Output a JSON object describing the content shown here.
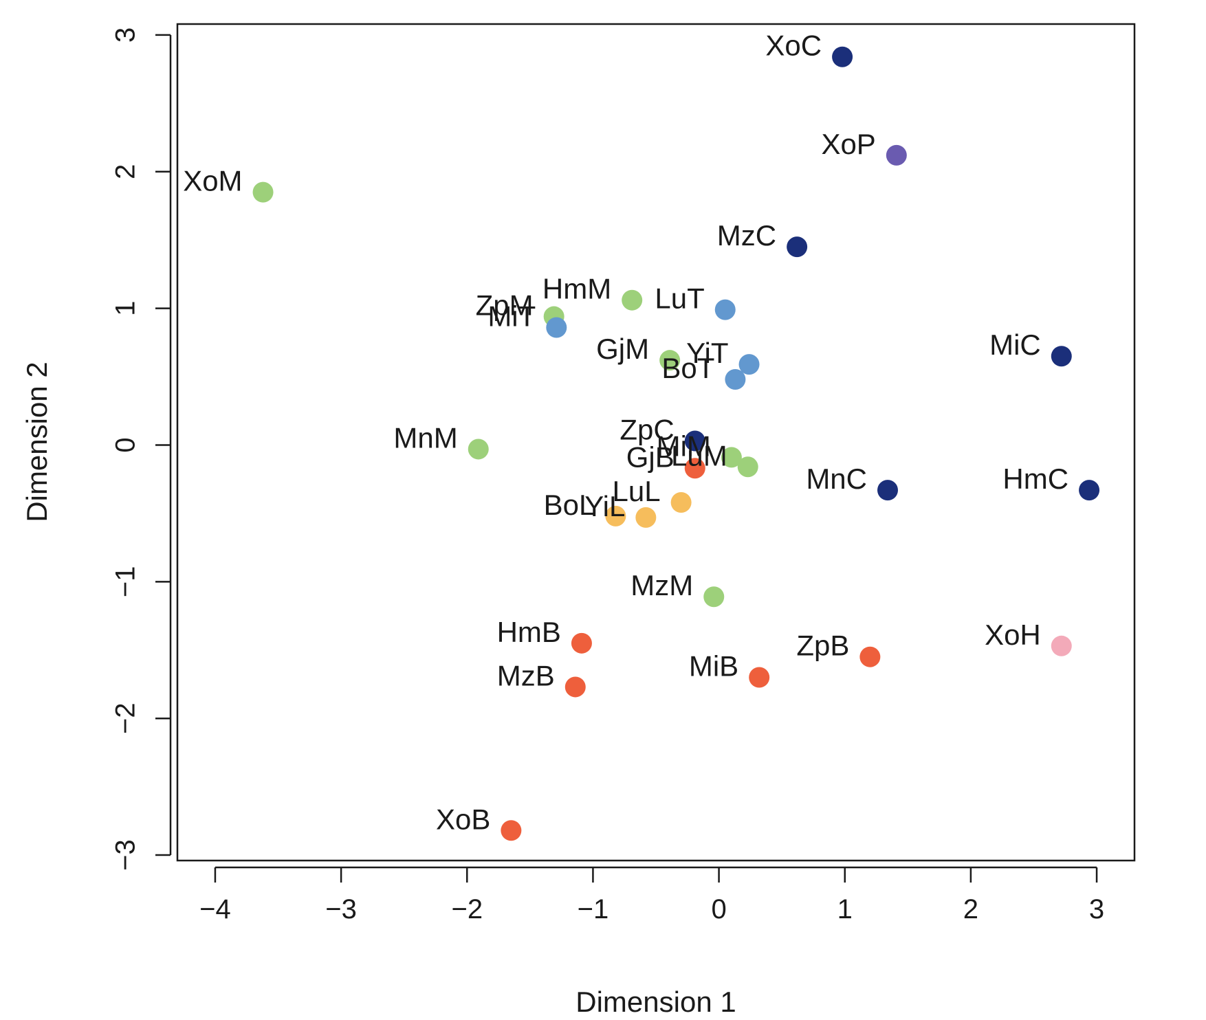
{
  "chart_data": {
    "type": "scatter",
    "title": "",
    "xlabel": "Dimension 1",
    "ylabel": "Dimension 2",
    "xlim": [
      -4.3,
      3.3
    ],
    "ylim": [
      -3.04,
      3.08
    ],
    "xticks": [
      -4,
      -3,
      -2,
      -1,
      0,
      1,
      2,
      3
    ],
    "yticks": [
      -3,
      -2,
      -1,
      0,
      1,
      2,
      3
    ],
    "xtick_labels": [
      "−4",
      "−3",
      "−2",
      "−1",
      "0",
      "1",
      "2",
      "3"
    ],
    "ytick_labels": [
      "−3",
      "−2",
      "−1",
      "0",
      "1",
      "2",
      "3"
    ],
    "grid": false,
    "legend": "none",
    "colors": {
      "C": "#1b2f7a",
      "P": "#6a5bb0",
      "T": "#6298cf",
      "M": "#9dd07a",
      "L": "#f6bd5c",
      "B": "#ee5f3c",
      "H": "#f3aab9"
    },
    "points": [
      {
        "label": "XoC",
        "x": 0.98,
        "y": 2.84,
        "group": "C"
      },
      {
        "label": "XoP",
        "x": 1.41,
        "y": 2.12,
        "group": "P"
      },
      {
        "label": "XoM",
        "x": -3.62,
        "y": 1.85,
        "group": "M"
      },
      {
        "label": "MzC",
        "x": 0.62,
        "y": 1.45,
        "group": "C"
      },
      {
        "label": "HmM",
        "x": -0.69,
        "y": 1.06,
        "group": "M"
      },
      {
        "label": "LuT",
        "x": 0.05,
        "y": 0.99,
        "group": "T"
      },
      {
        "label": "ZpM",
        "x": -1.31,
        "y": 0.94,
        "group": "M"
      },
      {
        "label": "MiT",
        "x": -1.29,
        "y": 0.86,
        "group": "T"
      },
      {
        "label": "MiC",
        "x": 2.72,
        "y": 0.65,
        "group": "C"
      },
      {
        "label": "GjM",
        "x": -0.39,
        "y": 0.62,
        "group": "M"
      },
      {
        "label": "YiT",
        "x": 0.24,
        "y": 0.59,
        "group": "T"
      },
      {
        "label": "BoT",
        "x": 0.13,
        "y": 0.48,
        "group": "T"
      },
      {
        "label": "ZpC",
        "x": -0.19,
        "y": 0.03,
        "group": "C"
      },
      {
        "label": "MnM",
        "x": -1.91,
        "y": -0.03,
        "group": "M"
      },
      {
        "label": "MiM",
        "x": 0.1,
        "y": -0.09,
        "group": "M"
      },
      {
        "label": "LuM",
        "x": 0.23,
        "y": -0.16,
        "group": "M"
      },
      {
        "label": "GjB",
        "x": -0.19,
        "y": -0.17,
        "group": "B"
      },
      {
        "label": "MnC",
        "x": 1.34,
        "y": -0.33,
        "group": "C"
      },
      {
        "label": "HmC",
        "x": 2.94,
        "y": -0.33,
        "group": "C"
      },
      {
        "label": "LuL",
        "x": -0.3,
        "y": -0.42,
        "group": "L"
      },
      {
        "label": "BoL",
        "x": -0.82,
        "y": -0.52,
        "group": "L"
      },
      {
        "label": "YiL",
        "x": -0.58,
        "y": -0.53,
        "group": "L"
      },
      {
        "label": "MzM",
        "x": -0.04,
        "y": -1.11,
        "group": "M"
      },
      {
        "label": "HmB",
        "x": -1.09,
        "y": -1.45,
        "group": "B"
      },
      {
        "label": "XoH",
        "x": 2.72,
        "y": -1.47,
        "group": "H"
      },
      {
        "label": "ZpB",
        "x": 1.2,
        "y": -1.55,
        "group": "B"
      },
      {
        "label": "MiB",
        "x": 0.32,
        "y": -1.7,
        "group": "B"
      },
      {
        "label": "MzB",
        "x": -1.14,
        "y": -1.77,
        "group": "B"
      },
      {
        "label": "XoB",
        "x": -1.65,
        "y": -2.82,
        "group": "B"
      }
    ]
  }
}
